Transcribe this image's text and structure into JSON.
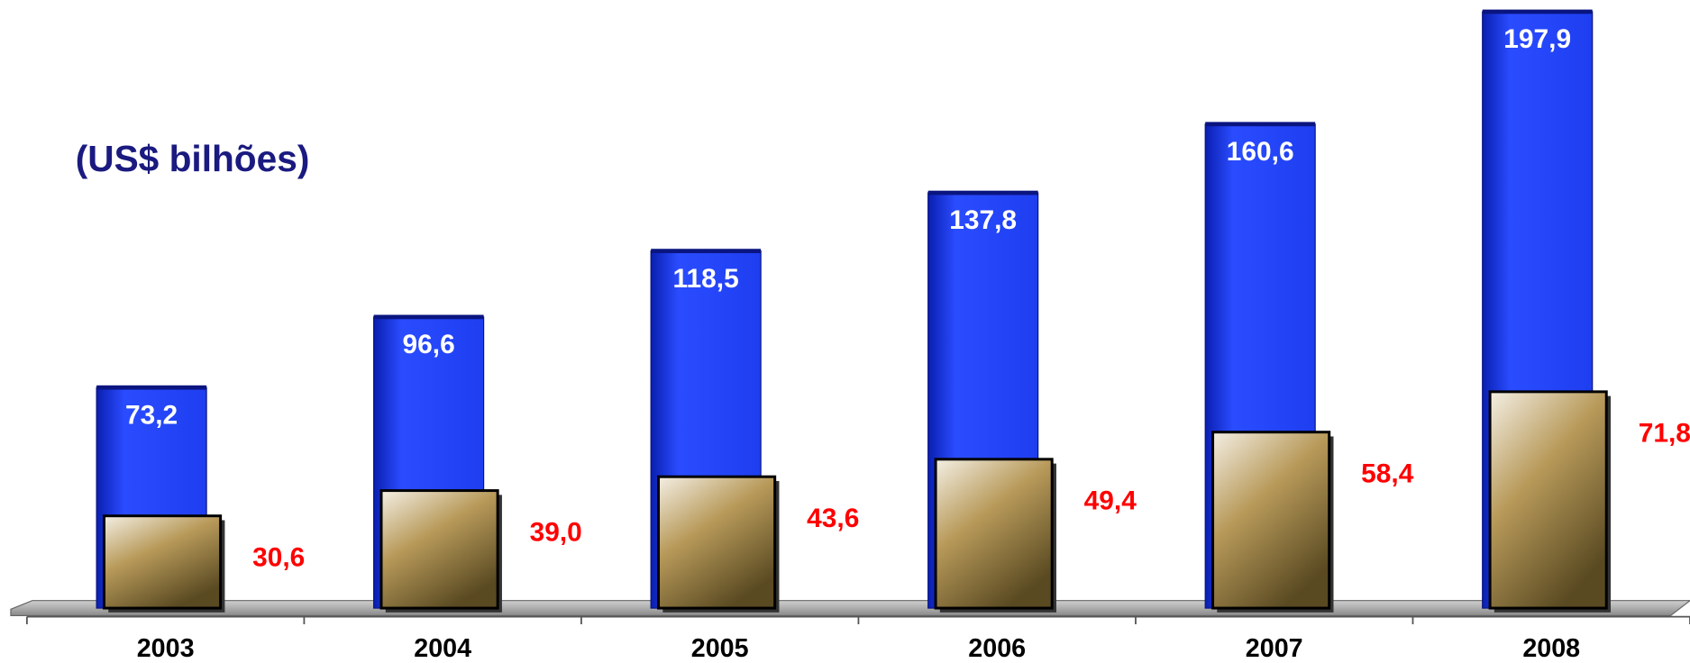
{
  "chart_data": {
    "type": "bar",
    "subtitle": "(US$ bilhões)",
    "categories": [
      "2003",
      "2004",
      "2005",
      "2006",
      "2007",
      "2008"
    ],
    "series": [
      {
        "color": "#1e3ef0",
        "values": [
          73.2,
          96.6,
          118.5,
          137.8,
          160.6,
          197.9
        ],
        "value_labels": [
          "73,2",
          "96,6",
          "118,5",
          "137,8",
          "160,6",
          "197,9"
        ]
      },
      {
        "color": "#b89a5a",
        "values": [
          30.6,
          39.0,
          43.6,
          49.4,
          58.4,
          71.8
        ],
        "value_labels": [
          "30,6",
          "39,0",
          "43,6",
          "49,4",
          "58,4",
          "71,8"
        ]
      }
    ],
    "ylim": [
      0,
      200
    ]
  }
}
